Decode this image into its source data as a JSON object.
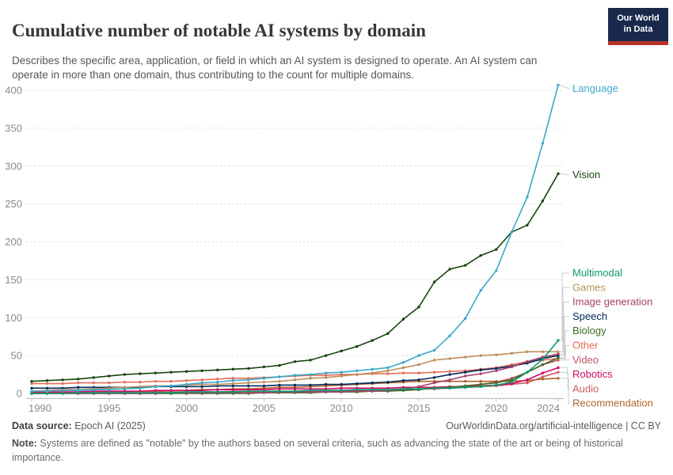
{
  "header": {
    "title": "Cumulative number of notable AI systems by domain",
    "subtitle": "Describes the specific area, application, or field in which an AI system is designed to operate. An AI system can operate in more than one domain, thus contributing to the count for multiple domains.",
    "logo_line1": "Our World",
    "logo_line2": "in Data"
  },
  "footer": {
    "datasource_label": "Data source:",
    "datasource_value": " Epoch AI (2025)",
    "attribution": "OurWorldinData.org/artificial-intelligence | CC BY",
    "note_label": "Note:",
    "note_value": " Systems are defined as \"notable\" by the authors based on several criteria, such as advancing the state of the art or being of historical importance."
  },
  "chart_data": {
    "type": "line",
    "title": "Cumulative number of notable AI systems by domain",
    "xlabel": "",
    "ylabel": "",
    "ylim": [
      0,
      400
    ],
    "yticks": [
      0,
      50,
      100,
      150,
      200,
      250,
      300,
      350,
      400
    ],
    "xticks": [
      1990,
      1995,
      2000,
      2005,
      2010,
      2015,
      2020,
      2024
    ],
    "grid": "horizontal-dashed",
    "legend_position": "right-of-line-ends",
    "marker": "point",
    "x": [
      1990,
      1991,
      1992,
      1993,
      1994,
      1995,
      1996,
      1997,
      1998,
      1999,
      2000,
      2001,
      2002,
      2003,
      2004,
      2005,
      2006,
      2007,
      2008,
      2009,
      2010,
      2011,
      2012,
      2013,
      2014,
      2015,
      2016,
      2017,
      2018,
      2019,
      2020,
      2021,
      2022,
      2023,
      2024
    ],
    "series": [
      {
        "name": "Language",
        "color": "#3BA8CC",
        "values": [
          3,
          3,
          4,
          4,
          5,
          5,
          6,
          7,
          9,
          10,
          12,
          14,
          15,
          17,
          18,
          20,
          22,
          24,
          25,
          27,
          28,
          30,
          32,
          34,
          41,
          50,
          57,
          76,
          99,
          136,
          162,
          213,
          259,
          330,
          407
        ]
      },
      {
        "name": "Vision",
        "color": "#18470F",
        "values": [
          16,
          17,
          18,
          19,
          21,
          23,
          25,
          26,
          27,
          28,
          29,
          30,
          31,
          32,
          33,
          35,
          37,
          42,
          44,
          50,
          56,
          62,
          70,
          79,
          98,
          114,
          147,
          164,
          169,
          182,
          190,
          213,
          222,
          254,
          290
        ]
      },
      {
        "name": "Multimodal",
        "color": "#0E9A6F",
        "values": [
          0,
          0,
          0,
          1,
          1,
          1,
          1,
          1,
          1,
          1,
          2,
          2,
          2,
          2,
          3,
          3,
          3,
          3,
          4,
          4,
          4,
          5,
          5,
          5,
          6,
          6,
          7,
          7,
          8,
          9,
          11,
          15,
          28,
          45,
          70
        ]
      },
      {
        "name": "Games",
        "color": "#BC8E5A",
        "values": [
          3,
          4,
          5,
          5,
          6,
          7,
          8,
          9,
          10,
          10,
          11,
          12,
          12,
          13,
          14,
          15,
          16,
          18,
          20,
          21,
          23,
          25,
          27,
          30,
          34,
          38,
          44,
          46,
          48,
          50,
          51,
          53,
          55,
          55,
          55
        ]
      },
      {
        "name": "Image generation",
        "color": "#A2426B",
        "values": [
          0,
          0,
          0,
          0,
          0,
          0,
          0,
          0,
          0,
          1,
          1,
          1,
          1,
          1,
          1,
          1,
          2,
          2,
          2,
          2,
          2,
          3,
          3,
          4,
          6,
          9,
          14,
          18,
          23,
          26,
          30,
          35,
          42,
          48,
          52
        ]
      },
      {
        "name": "Speech",
        "color": "#00295B",
        "values": [
          7,
          7,
          7,
          8,
          8,
          8,
          8,
          8,
          9,
          9,
          9,
          9,
          10,
          10,
          10,
          10,
          11,
          11,
          11,
          12,
          12,
          13,
          14,
          15,
          17,
          18,
          21,
          25,
          28,
          31,
          33,
          36,
          40,
          46,
          50
        ]
      },
      {
        "name": "Biology",
        "color": "#3C6E1F",
        "values": [
          0,
          0,
          0,
          0,
          0,
          0,
          0,
          0,
          0,
          0,
          0,
          0,
          0,
          0,
          0,
          1,
          1,
          1,
          1,
          2,
          2,
          2,
          3,
          3,
          4,
          5,
          7,
          8,
          10,
          12,
          14,
          18,
          28,
          38,
          47
        ]
      },
      {
        "name": "Other",
        "color": "#E56E5A",
        "values": [
          13,
          13,
          13,
          14,
          14,
          14,
          15,
          15,
          16,
          16,
          17,
          18,
          19,
          20,
          20,
          21,
          22,
          23,
          24,
          24,
          25,
          25,
          26,
          26,
          27,
          27,
          28,
          29,
          30,
          32,
          34,
          38,
          42,
          44,
          46
        ]
      },
      {
        "name": "Video",
        "color": "#C15065",
        "values": [
          0,
          0,
          0,
          0,
          0,
          0,
          0,
          0,
          0,
          0,
          1,
          1,
          1,
          1,
          1,
          2,
          2,
          2,
          3,
          3,
          3,
          4,
          4,
          5,
          5,
          6,
          6,
          8,
          10,
          12,
          15,
          20,
          28,
          38,
          44
        ]
      },
      {
        "name": "Robotics",
        "color": "#CF0A66",
        "values": [
          2,
          2,
          2,
          2,
          3,
          3,
          3,
          3,
          4,
          4,
          4,
          4,
          5,
          5,
          5,
          5,
          6,
          6,
          6,
          6,
          7,
          7,
          7,
          7,
          8,
          8,
          8,
          9,
          9,
          10,
          11,
          13,
          18,
          27,
          34
        ]
      },
      {
        "name": "Audio",
        "color": "#D05B62",
        "values": [
          1,
          1,
          1,
          1,
          1,
          1,
          1,
          1,
          2,
          2,
          2,
          2,
          2,
          3,
          3,
          3,
          3,
          3,
          4,
          4,
          4,
          4,
          5,
          5,
          5,
          6,
          6,
          7,
          8,
          9,
          10,
          12,
          14,
          22,
          28
        ]
      },
      {
        "name": "Recommendation",
        "color": "#B16228",
        "values": [
          1,
          1,
          1,
          2,
          2,
          2,
          2,
          3,
          3,
          4,
          4,
          5,
          5,
          6,
          6,
          7,
          8,
          8,
          9,
          10,
          11,
          12,
          13,
          14,
          15,
          16,
          16,
          16,
          16,
          16,
          16,
          16,
          17,
          19,
          20
        ]
      }
    ]
  }
}
